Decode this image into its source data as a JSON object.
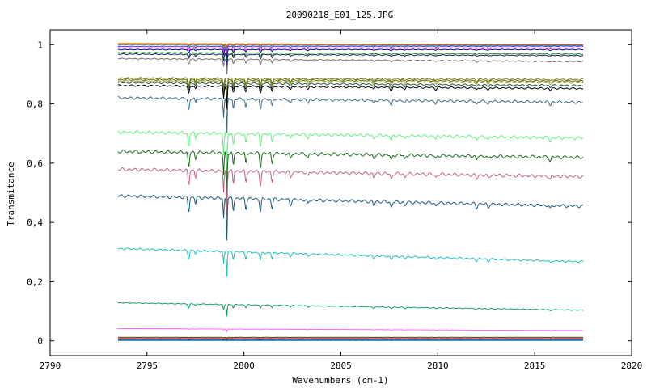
{
  "chart_data": {
    "type": "line",
    "title": "20090218_E01_125.JPG",
    "xlabel": "Wavenumbers (cm-1)",
    "ylabel": "Transmitance",
    "xlim": [
      2790,
      2820
    ],
    "ylim": [
      -0.05,
      1.05
    ],
    "x_ticks": [
      2790,
      2795,
      2800,
      2805,
      2810,
      2815,
      2820
    ],
    "x_tick_labels": [
      "2790",
      "2795",
      "2800",
      "2805",
      "2810",
      "2815",
      "2820"
    ],
    "y_ticks": [
      0,
      0.2,
      0.4,
      0.6,
      0.8,
      1
    ],
    "y_tick_labels": [
      "0",
      "0,2",
      "0,4",
      "0,6",
      "0,8",
      "1"
    ],
    "x_range": [
      2793.5,
      2817.5
    ],
    "grid": false,
    "legend": "none",
    "series": [
      {
        "color": "#ff8c00",
        "start": 1.005,
        "end": 1.0,
        "depth": 0.01
      },
      {
        "color": "#ff3030",
        "start": 1.003,
        "end": 1.0,
        "depth": 0.015
      },
      {
        "color": "#20b050",
        "start": 1.0,
        "end": 0.998,
        "depth": 0.02
      },
      {
        "color": "#4040ff",
        "start": 0.995,
        "end": 0.996,
        "depth": 0.025
      },
      {
        "color": "#ff40ff",
        "start": 0.99,
        "end": 0.99,
        "depth": 0.03
      },
      {
        "color": "#00008b",
        "start": 0.985,
        "end": 0.985,
        "depth": 0.035
      },
      {
        "color": "#228b22",
        "start": 0.975,
        "end": 0.97,
        "depth": 0.04
      },
      {
        "color": "#191970",
        "start": 0.97,
        "end": 0.965,
        "depth": 0.045
      },
      {
        "color": "#707070",
        "start": 0.955,
        "end": 0.945,
        "depth": 0.05
      },
      {
        "color": "#808000",
        "start": 0.89,
        "end": 0.885,
        "depth": 0.07
      },
      {
        "color": "#556b2f",
        "start": 0.885,
        "end": 0.88,
        "depth": 0.07
      },
      {
        "color": "#a0a020",
        "start": 0.88,
        "end": 0.875,
        "depth": 0.075
      },
      {
        "color": "#2f4f4f",
        "start": 0.875,
        "end": 0.865,
        "depth": 0.08
      },
      {
        "color": "#000000",
        "start": 0.865,
        "end": 0.855,
        "depth": 0.08
      },
      {
        "color": "#3a6a8a",
        "start": 0.825,
        "end": 0.81,
        "depth": 0.12
      },
      {
        "color": "#60f080",
        "start": 0.71,
        "end": 0.69,
        "depth": 0.14
      },
      {
        "color": "#1a6a1a",
        "start": 0.645,
        "end": 0.625,
        "depth": 0.15
      },
      {
        "color": "#c06080",
        "start": 0.585,
        "end": 0.56,
        "depth": 0.15
      },
      {
        "color": "#1a5a7a",
        "start": 0.495,
        "end": 0.46,
        "depth": 0.14
      },
      {
        "color": "#20c0c0",
        "start": 0.315,
        "end": 0.27,
        "depth": 0.085
      },
      {
        "color": "#10a060",
        "start": 0.13,
        "end": 0.105,
        "depth": 0.04
      },
      {
        "color": "#ff60ff",
        "start": 0.042,
        "end": 0.035,
        "depth": 0.008
      },
      {
        "color": "#404000",
        "start": 0.012,
        "end": 0.012,
        "depth": 0.003
      },
      {
        "color": "#ff2020",
        "start": 0.008,
        "end": 0.008,
        "depth": 0.002
      },
      {
        "color": "#2020c0",
        "start": 0.004,
        "end": 0.004,
        "depth": 0.002
      },
      {
        "color": "#00a0a0",
        "start": 0.001,
        "end": 0.001,
        "depth": 0.001
      }
    ]
  }
}
